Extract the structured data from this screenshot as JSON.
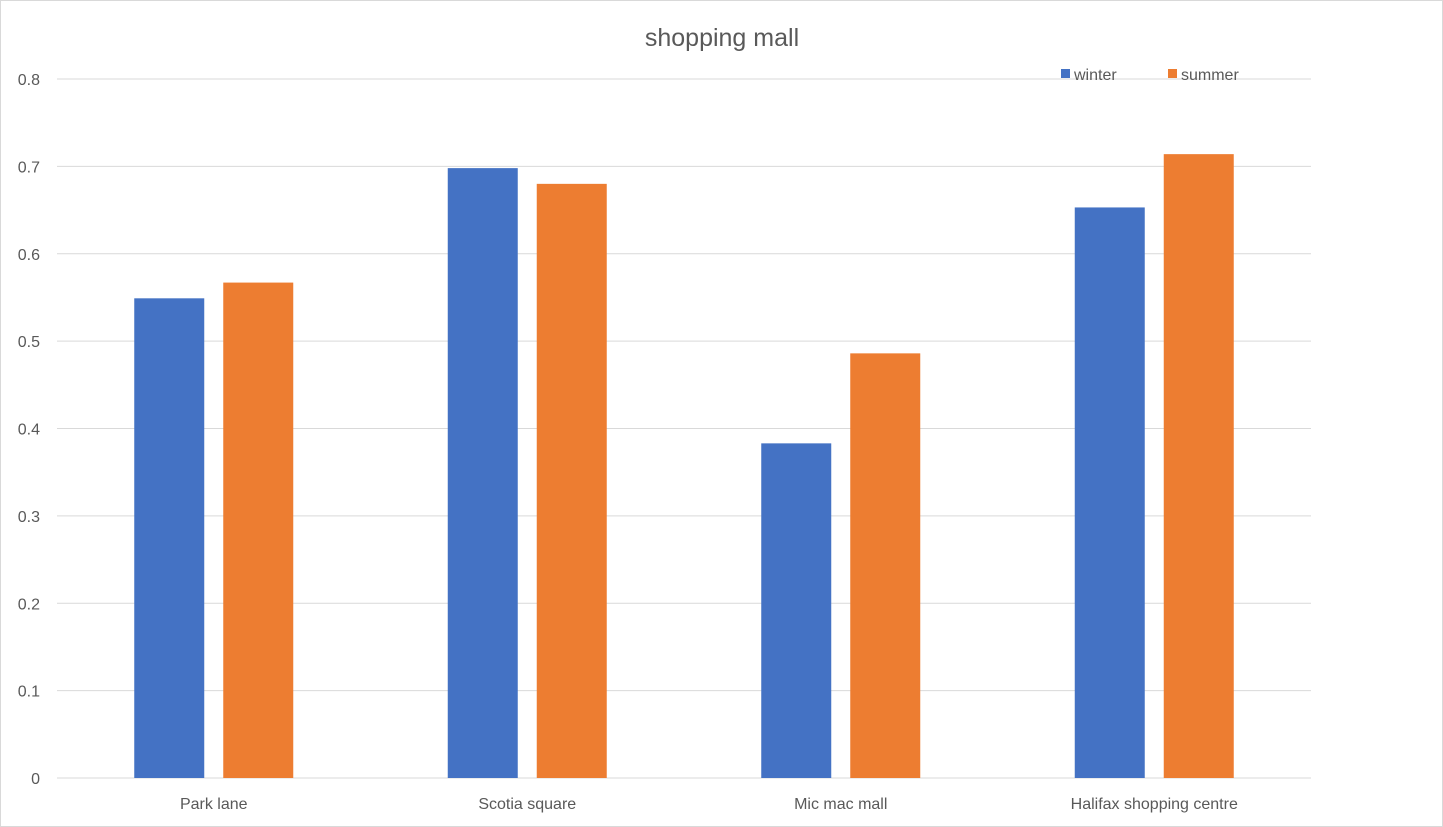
{
  "chart_data": {
    "type": "bar",
    "title": "shopping mall",
    "categories": [
      "Park lane",
      "Scotia square",
      "Mic mac mall",
      "Halifax shopping centre"
    ],
    "series": [
      {
        "name": "winter",
        "values": [
          0.549,
          0.698,
          0.383,
          0.653
        ],
        "color": "#4472c4"
      },
      {
        "name": "summer",
        "values": [
          0.567,
          0.68,
          0.486,
          0.714
        ],
        "color": "#ed7d31"
      }
    ],
    "ylim": [
      0,
      0.8
    ],
    "yticks": [
      "0",
      "0.1",
      "0.2",
      "0.3",
      "0.4",
      "0.5",
      "0.6",
      "0.7",
      "0.8"
    ],
    "grid": true,
    "legend_position": "top-right"
  }
}
